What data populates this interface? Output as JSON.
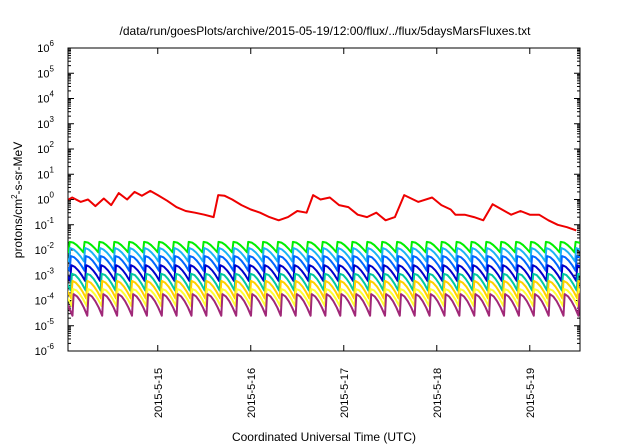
{
  "chart_data": {
    "type": "line",
    "title": "/data/run/goesPlots/archive/2015-05-19/12:00/flux/../flux/5daysMarsFluxes.txt",
    "xlabel": "Coordinated Universal Time (UTC)",
    "ylabel": "protons/cm2-s-sr-MeV",
    "ylabel_parts": {
      "pre": "protons/cm",
      "sup": "2",
      "post": "-s-sr-MeV"
    },
    "yscale": "log",
    "ylim": [
      1e-06,
      1000000.0
    ],
    "y_ticks": [
      {
        "base": "10",
        "exp": "-6"
      },
      {
        "base": "10",
        "exp": "-5"
      },
      {
        "base": "10",
        "exp": "-4"
      },
      {
        "base": "10",
        "exp": "-3"
      },
      {
        "base": "10",
        "exp": "-2"
      },
      {
        "base": "10",
        "exp": "-1"
      },
      {
        "base": "10",
        "exp": "0"
      },
      {
        "base": "10",
        "exp": "1"
      },
      {
        "base": "10",
        "exp": "2"
      },
      {
        "base": "10",
        "exp": "3"
      },
      {
        "base": "10",
        "exp": "4"
      },
      {
        "base": "10",
        "exp": "5"
      },
      {
        "base": "10",
        "exp": "6"
      }
    ],
    "xlim_days": [
      "2015-05-14T00:50",
      "2015-05-19T13:00"
    ],
    "x_ticks": [
      "2015-5-15",
      "2015-5-16",
      "2015-5-17",
      "2015-5-18",
      "2015-5-19"
    ],
    "grid": false,
    "legend": "none",
    "series": [
      {
        "color": "#ee0000",
        "x": [
          14.04,
          14.08,
          14.17,
          14.25,
          14.33,
          14.42,
          14.5,
          14.58,
          14.67,
          14.75,
          14.83,
          14.92,
          15.0,
          15.1,
          15.2,
          15.3,
          15.4,
          15.5,
          15.6,
          15.65,
          15.72,
          15.8,
          15.9,
          16.0,
          16.1,
          16.2,
          16.3,
          16.4,
          16.5,
          16.6,
          16.67,
          16.75,
          16.85,
          16.95,
          17.05,
          17.15,
          17.25,
          17.35,
          17.45,
          17.55,
          17.65,
          17.8,
          17.95,
          18.05,
          18.15,
          18.2,
          18.3,
          18.4,
          18.5,
          18.6,
          18.7,
          18.8,
          18.9,
          19.0,
          19.1,
          19.2,
          19.3,
          19.4,
          19.5
        ],
        "y": [
          1.0,
          1.2,
          0.8,
          1.0,
          0.55,
          1.1,
          0.6,
          1.8,
          1.0,
          2.0,
          1.4,
          2.2,
          1.5,
          0.9,
          0.5,
          0.35,
          0.3,
          0.25,
          0.2,
          1.5,
          1.4,
          1.0,
          0.6,
          0.4,
          0.3,
          0.2,
          0.15,
          0.2,
          0.35,
          0.3,
          1.5,
          1.0,
          1.2,
          0.6,
          0.5,
          0.25,
          0.2,
          0.3,
          0.15,
          0.2,
          1.5,
          0.8,
          1.2,
          0.6,
          0.4,
          0.25,
          0.25,
          0.2,
          0.15,
          0.65,
          0.4,
          0.25,
          0.35,
          0.25,
          0.25,
          0.15,
          0.1,
          0.08,
          0.06
        ]
      },
      {
        "color": "#00ee00",
        "spike_period_days": 0.16,
        "peak": 0.022,
        "trough": 0.008
      },
      {
        "color": "#1ab4f5",
        "spike_period_days": 0.16,
        "peak": 0.012,
        "trough": 0.0035
      },
      {
        "color": "#0066ff",
        "spike_period_days": 0.16,
        "peak": 0.006,
        "trough": 0.0015
      },
      {
        "color": "#0000cc",
        "spike_period_days": 0.16,
        "peak": 0.0025,
        "trough": 0.0006
      },
      {
        "color": "#00c8a0",
        "spike_period_days": 0.16,
        "peak": 0.0012,
        "trough": 0.00025
      },
      {
        "color": "#ffd000",
        "spike_period_days": 0.16,
        "peak": 0.0006,
        "trough": 0.00012
      },
      {
        "color": "#ffff33",
        "spike_period_days": 0.16,
        "peak": 0.0003,
        "trough": 6e-05
      },
      {
        "color": "#a02878",
        "spike_period_days": 0.16,
        "peak": 0.00018,
        "trough": 2.5e-05
      }
    ]
  }
}
